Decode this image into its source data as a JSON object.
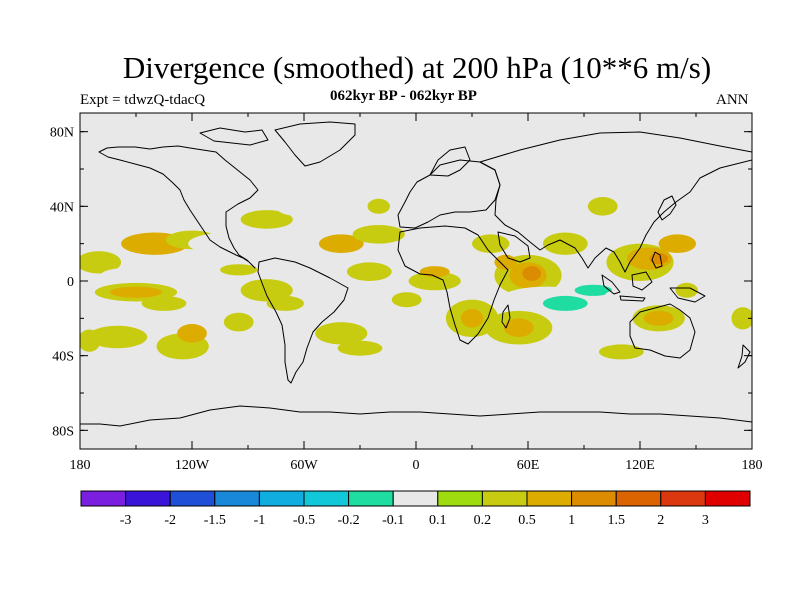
{
  "title": "Divergence (smoothed) at 200 hPa (10**6 m/s)",
  "left_subtitle": "Expt = tdwzQ-tdacQ",
  "center_subtitle": "062kyr BP - 062kyr BP",
  "right_subtitle": "ANN",
  "map": {
    "projection": "cylindrical-equidistant",
    "lon_range": [
      -180,
      180
    ],
    "lat_range": [
      -90,
      90
    ],
    "background_color": "#e8e8e8",
    "lat_ticks": [
      {
        "lat": 80,
        "label": "80N"
      },
      {
        "lat": 40,
        "label": "40N"
      },
      {
        "lat": 0,
        "label": "0"
      },
      {
        "lat": -40,
        "label": "40S"
      },
      {
        "lat": -80,
        "label": "80S"
      }
    ],
    "lon_ticks": [
      {
        "lon": -180,
        "label": "180"
      },
      {
        "lon": -120,
        "label": "120W"
      },
      {
        "lon": -60,
        "label": "60W"
      },
      {
        "lon": 0,
        "label": "0"
      },
      {
        "lon": 60,
        "label": "60E"
      },
      {
        "lon": 120,
        "label": "120E"
      },
      {
        "lon": 180,
        "label": "180"
      }
    ]
  },
  "colorbar": {
    "colors": [
      "#7a1fe0",
      "#3a14d8",
      "#1f4fd6",
      "#1a88d8",
      "#10aee0",
      "#10c8d8",
      "#1fdca0",
      "#e8e8e8",
      "#9edc10",
      "#c8cc10",
      "#dcac00",
      "#dc8c00",
      "#dc6400",
      "#dc3810",
      "#e00000"
    ],
    "labels": [
      "-3",
      "-2",
      "-1.5",
      "-1",
      "-0.5",
      "-0.2",
      "-0.1",
      "0.1",
      "0.2",
      "0.5",
      "1",
      "1.5",
      "2",
      "3"
    ]
  },
  "chart_data": {
    "type": "filled-contour-map",
    "variable": "Divergence (smoothed) at 200 hPa",
    "units": "10**6 m/s",
    "levels": [
      -3,
      -2,
      -1.5,
      -1,
      -0.5,
      -0.2,
      -0.1,
      0.1,
      0.2,
      0.5,
      1,
      1.5,
      2,
      3
    ],
    "regions": [
      {
        "lon": -170,
        "lat": 10,
        "rlon": 12,
        "rlat": 6,
        "value": 0.2
      },
      {
        "lon": -155,
        "lat": 3,
        "rlon": 14,
        "rlat": 4,
        "value": -0.1
      },
      {
        "lon": -140,
        "lat": 20,
        "rlon": 18,
        "rlat": 6,
        "value": 0.5
      },
      {
        "lon": -120,
        "lat": 22,
        "rlon": 14,
        "rlat": 5,
        "value": 0.2
      },
      {
        "lon": -150,
        "lat": -6,
        "rlon": 22,
        "rlat": 5,
        "value": 0.2
      },
      {
        "lon": -150,
        "lat": -6,
        "rlon": 14,
        "rlat": 3,
        "value": 0.5
      },
      {
        "lon": -135,
        "lat": -12,
        "rlon": 12,
        "rlat": 4,
        "value": 0.2
      },
      {
        "lon": -160,
        "lat": -30,
        "rlon": 16,
        "rlat": 6,
        "value": 0.2
      },
      {
        "lon": -175,
        "lat": -32,
        "rlon": 6,
        "rlat": 6,
        "value": 0.2
      },
      {
        "lon": -125,
        "lat": -35,
        "rlon": 14,
        "rlat": 7,
        "value": 0.2
      },
      {
        "lon": -120,
        "lat": -28,
        "rlon": 8,
        "rlat": 5,
        "value": 0.5
      },
      {
        "lon": -178,
        "lat": 40,
        "rlon": 6,
        "rlat": 5,
        "value": -0.1
      },
      {
        "lon": -100,
        "lat": 20,
        "rlon": 22,
        "rlat": 6,
        "value": -0.1
      },
      {
        "lon": -80,
        "lat": 33,
        "rlon": 14,
        "rlat": 5,
        "value": 0.2
      },
      {
        "lon": -65,
        "lat": 40,
        "rlon": 10,
        "rlat": 5,
        "value": -0.1
      },
      {
        "lon": -60,
        "lat": 22,
        "rlon": 10,
        "rlat": 5,
        "value": -0.1
      },
      {
        "lon": -95,
        "lat": 6,
        "rlon": 10,
        "rlat": 3,
        "value": 0.2
      },
      {
        "lon": -80,
        "lat": -5,
        "rlon": 14,
        "rlat": 6,
        "value": 0.2
      },
      {
        "lon": -72,
        "lat": -22,
        "rlon": 10,
        "rlat": 5,
        "value": -0.1
      },
      {
        "lon": -95,
        "lat": -22,
        "rlon": 8,
        "rlat": 5,
        "value": 0.2
      },
      {
        "lon": -70,
        "lat": -12,
        "rlon": 10,
        "rlat": 4,
        "value": 0.2
      },
      {
        "lon": -40,
        "lat": 20,
        "rlon": 12,
        "rlat": 5,
        "value": 0.5
      },
      {
        "lon": -20,
        "lat": 25,
        "rlon": 14,
        "rlat": 5,
        "value": 0.2
      },
      {
        "lon": -25,
        "lat": 5,
        "rlon": 12,
        "rlat": 5,
        "value": 0.2
      },
      {
        "lon": -30,
        "lat": -12,
        "rlon": 12,
        "rlat": 5,
        "value": -0.1
      },
      {
        "lon": -10,
        "lat": -22,
        "rlon": 14,
        "rlat": 6,
        "value": -0.1
      },
      {
        "lon": -40,
        "lat": -28,
        "rlon": 14,
        "rlat": 6,
        "value": 0.2
      },
      {
        "lon": -30,
        "lat": -36,
        "rlon": 12,
        "rlat": 4,
        "value": 0.2
      },
      {
        "lon": -5,
        "lat": -10,
        "rlon": 8,
        "rlat": 4,
        "value": 0.2
      },
      {
        "lon": 10,
        "lat": 0,
        "rlon": 14,
        "rlat": 5,
        "value": 0.2
      },
      {
        "lon": 10,
        "lat": 5,
        "rlon": 8,
        "rlat": 3,
        "value": 0.5
      },
      {
        "lon": -20,
        "lat": 40,
        "rlon": 6,
        "rlat": 4,
        "value": 0.2
      },
      {
        "lon": 30,
        "lat": 30,
        "rlon": 8,
        "rlat": 4,
        "value": -0.1
      },
      {
        "lon": 50,
        "lat": 35,
        "rlon": 10,
        "rlat": 5,
        "value": -0.1
      },
      {
        "lon": 40,
        "lat": 20,
        "rlon": 10,
        "rlat": 5,
        "value": 0.2
      },
      {
        "lon": 60,
        "lat": 3,
        "rlon": 18,
        "rlat": 11,
        "value": 0.2
      },
      {
        "lon": 60,
        "lat": 3,
        "rlon": 10,
        "rlat": 7,
        "value": 0.5
      },
      {
        "lon": 62,
        "lat": 4,
        "rlon": 5,
        "rlat": 4,
        "value": 1
      },
      {
        "lon": 48,
        "lat": 10,
        "rlon": 6,
        "rlat": 4,
        "value": 0.5
      },
      {
        "lon": 70,
        "lat": -10,
        "rlon": 25,
        "rlat": 7,
        "value": -0.1
      },
      {
        "lon": 80,
        "lat": -12,
        "rlon": 12,
        "rlat": 4,
        "value": -0.2
      },
      {
        "lon": 95,
        "lat": -5,
        "rlon": 10,
        "rlat": 3,
        "value": -0.2
      },
      {
        "lon": 55,
        "lat": -25,
        "rlon": 18,
        "rlat": 9,
        "value": 0.2
      },
      {
        "lon": 55,
        "lat": -25,
        "rlon": 8,
        "rlat": 5,
        "value": 0.5
      },
      {
        "lon": 30,
        "lat": -20,
        "rlon": 14,
        "rlat": 10,
        "value": 0.2
      },
      {
        "lon": 30,
        "lat": -20,
        "rlon": 6,
        "rlat": 5,
        "value": 0.5
      },
      {
        "lon": 35,
        "lat": -40,
        "rlon": 10,
        "rlat": 4,
        "value": -0.1
      },
      {
        "lon": 80,
        "lat": 20,
        "rlon": 12,
        "rlat": 6,
        "value": 0.2
      },
      {
        "lon": 95,
        "lat": 10,
        "rlon": 10,
        "rlat": 5,
        "value": -0.1
      },
      {
        "lon": 105,
        "lat": 25,
        "rlon": 10,
        "rlat": 6,
        "value": -0.1
      },
      {
        "lon": 100,
        "lat": 40,
        "rlon": 8,
        "rlat": 5,
        "value": 0.2
      },
      {
        "lon": 90,
        "lat": 50,
        "rlon": 8,
        "rlat": 4,
        "value": -0.1
      },
      {
        "lon": 120,
        "lat": 10,
        "rlon": 18,
        "rlat": 10,
        "value": 0.2
      },
      {
        "lon": 125,
        "lat": 12,
        "rlon": 12,
        "rlat": 6,
        "value": 0.5
      },
      {
        "lon": 130,
        "lat": 12,
        "rlon": 5,
        "rlat": 3,
        "value": 1
      },
      {
        "lon": 140,
        "lat": 20,
        "rlon": 10,
        "rlat": 5,
        "value": 0.5
      },
      {
        "lon": 145,
        "lat": 35,
        "rlon": 14,
        "rlat": 8,
        "value": -0.1
      },
      {
        "lon": 150,
        "lat": 50,
        "rlon": 12,
        "rlat": 5,
        "value": -0.1
      },
      {
        "lon": 160,
        "lat": 8,
        "rlon": 14,
        "rlat": 5,
        "value": -0.1
      },
      {
        "lon": 170,
        "lat": 15,
        "rlon": 8,
        "rlat": 5,
        "value": -0.1
      },
      {
        "lon": 115,
        "lat": -8,
        "rlon": 14,
        "rlat": 4,
        "value": -0.1
      },
      {
        "lon": 130,
        "lat": -20,
        "rlon": 14,
        "rlat": 7,
        "value": 0.2
      },
      {
        "lon": 130,
        "lat": -20,
        "rlon": 8,
        "rlat": 4,
        "value": 0.5
      },
      {
        "lon": 145,
        "lat": -5,
        "rlon": 6,
        "rlat": 4,
        "value": 0.2
      },
      {
        "lon": 160,
        "lat": -30,
        "rlon": 14,
        "rlat": 5,
        "value": -0.1
      },
      {
        "lon": 175,
        "lat": -20,
        "rlon": 6,
        "rlat": 6,
        "value": 0.2
      },
      {
        "lon": 110,
        "lat": -38,
        "rlon": 12,
        "rlat": 4,
        "value": 0.2
      },
      {
        "lon": -165,
        "lat": -75,
        "rlon": 10,
        "rlat": 5,
        "value": -0.1
      },
      {
        "lon": -15,
        "lat": 78,
        "rlon": 6,
        "rlat": 3,
        "value": -0.1
      }
    ]
  }
}
